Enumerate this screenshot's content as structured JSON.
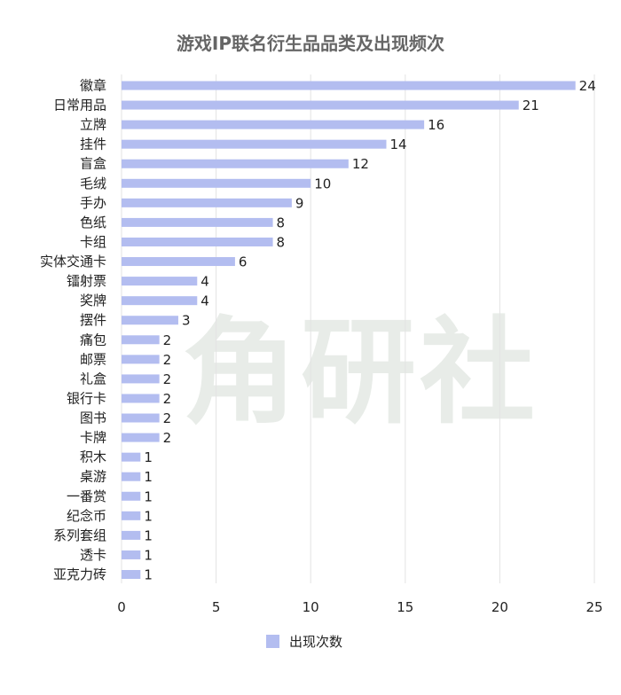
{
  "chart_data": {
    "type": "bar",
    "orientation": "horizontal",
    "title": "游戏IP联名衍生品品类及出现频次",
    "categories": [
      "徽章",
      "日常用品",
      "立牌",
      "挂件",
      "盲盒",
      "毛绒",
      "手办",
      "色纸",
      "卡组",
      "实体交通卡",
      "镭射票",
      "奖牌",
      "摆件",
      "痛包",
      "邮票",
      "礼盒",
      "银行卡",
      "图书",
      "卡牌",
      "积木",
      "桌游",
      "一番赏",
      "纪念币",
      "系列套组",
      "透卡",
      "亚克力砖"
    ],
    "series": [
      {
        "name": "出现次数",
        "values": [
          24,
          21,
          16,
          14,
          12,
          10,
          9,
          8,
          8,
          6,
          4,
          4,
          3,
          2,
          2,
          2,
          2,
          2,
          2,
          1,
          1,
          1,
          1,
          1,
          1,
          1
        ]
      }
    ],
    "xlim": [
      0,
      25
    ],
    "xticks": [
      0,
      5,
      10,
      15,
      20,
      25
    ],
    "grid": true,
    "legend_position": "bottom-center",
    "bar_color": "#b3bdf0",
    "grid_color": "#e3e3e3",
    "label_color": "#222222",
    "watermark_text": "角研社"
  }
}
